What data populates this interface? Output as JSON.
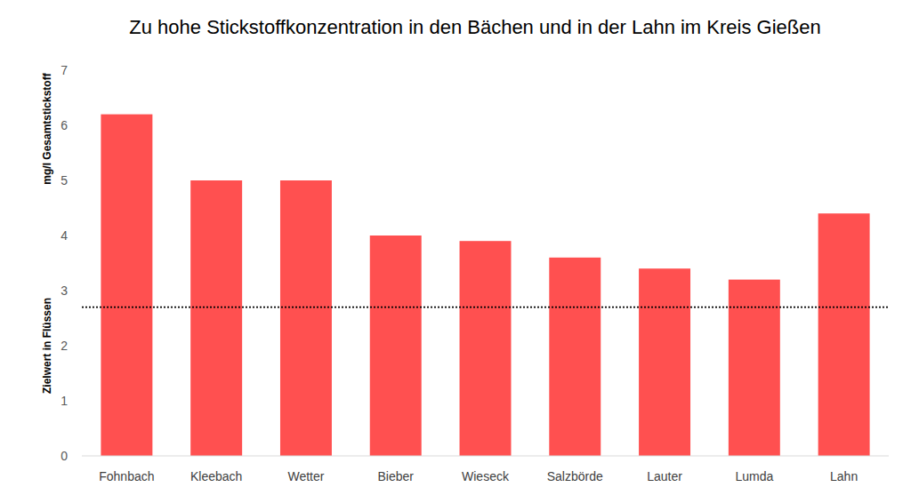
{
  "chart_data": {
    "type": "bar",
    "title": "Zu hohe Stickstoffkonzentration in den Bächen und in der Lahn im Kreis Gießen",
    "y_label": "mg/l Gesamtstickstoff",
    "categories": [
      "Fohnbach",
      "Kleebach",
      "Wetter",
      "Bieber",
      "Wieseck",
      "Salzbörde",
      "Lauter",
      "Lumda",
      "Lahn"
    ],
    "values": [
      6.2,
      5.0,
      5.0,
      4.0,
      3.9,
      3.6,
      3.4,
      3.2,
      4.4
    ],
    "color": "#ff5050",
    "ylim": [
      0,
      7
    ],
    "yticks": [
      0,
      1,
      2,
      3,
      4,
      5,
      6,
      7
    ],
    "grid": false,
    "reference_line": {
      "value": 2.7,
      "label": "Zielwert in Flüssen"
    }
  }
}
